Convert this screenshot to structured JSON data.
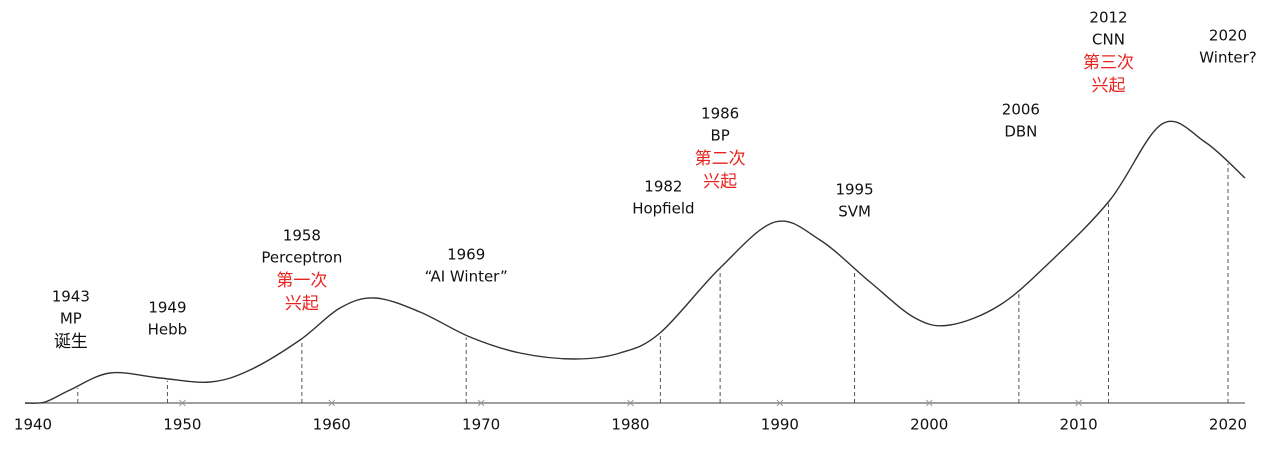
{
  "axis": {
    "ticks": [
      1940,
      1950,
      1960,
      1970,
      1980,
      1990,
      2000,
      2010,
      2020
    ]
  },
  "events": [
    {
      "year": 1943,
      "name": "MP",
      "note": "诞生",
      "note_color": "#111111"
    },
    {
      "year": 1949,
      "name": "Hebb"
    },
    {
      "year": 1958,
      "name": "Perceptron",
      "note": "第一次",
      "note2": "兴起",
      "note_color": "#e8231f"
    },
    {
      "year": 1969,
      "name": "“AI Winter”"
    },
    {
      "year": 1982,
      "name": "Hopfield"
    },
    {
      "year": 1986,
      "name": "BP",
      "note": "第二次",
      "note2": "兴起",
      "note_color": "#e8231f"
    },
    {
      "year": 1995,
      "name": "SVM"
    },
    {
      "year": 2006,
      "name": "DBN"
    },
    {
      "year": 2012,
      "name": "CNN",
      "note": "第三次",
      "note2": "兴起",
      "note_color": "#e8231f"
    },
    {
      "year": 2020,
      "name": "Winter?"
    }
  ]
}
